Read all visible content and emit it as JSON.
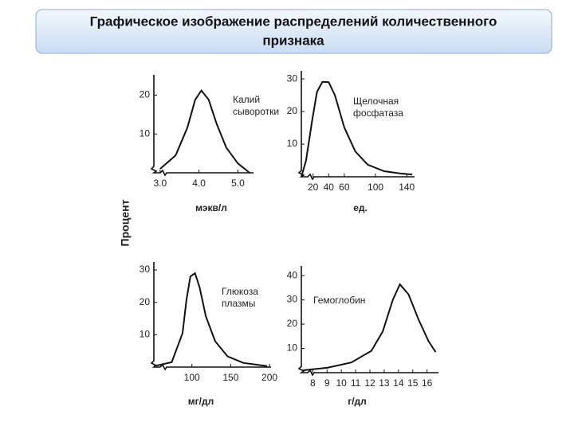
{
  "slide_title": [
    "Графическое изображение распределений количественного",
    "признака"
  ],
  "ylabel": "Процент",
  "chart_data": [
    {
      "type": "line",
      "annotation": [
        "Калий",
        "сыворотки"
      ],
      "xlabel": "мэкв/л",
      "x": [
        3.0,
        3.4,
        3.7,
        3.9,
        4.06,
        4.25,
        4.45,
        4.7,
        5.0,
        5.3
      ],
      "values": [
        1,
        4.5,
        11.6,
        18.8,
        21.2,
        18.8,
        12.7,
        6.5,
        2.4,
        0
      ],
      "xlim": [
        2.84,
        5.4
      ],
      "ylim": [
        0,
        24
      ],
      "xticks": [
        {
          "value": 3,
          "label": "3.0"
        },
        {
          "value": 4,
          "label": "4.0"
        },
        {
          "value": 5,
          "label": "5.0"
        }
      ],
      "yticks": [
        10,
        20
      ]
    },
    {
      "type": "line",
      "annotation": [
        "Щелочная",
        "фосфатаза"
      ],
      "xlabel": "ед.",
      "x": [
        5,
        11,
        19,
        25,
        32,
        40,
        48,
        60,
        74,
        90,
        111,
        132,
        147
      ],
      "values": [
        0,
        5,
        17.5,
        26,
        29.1,
        29,
        25,
        15.1,
        7.8,
        3.7,
        1.7,
        1,
        0.7
      ],
      "xlim": [
        5,
        150
      ],
      "ylim": [
        0,
        31
      ],
      "xticks": [
        20,
        40,
        60,
        100,
        140
      ],
      "yticks": [
        10,
        20,
        30
      ]
    },
    {
      "type": "line",
      "annotation": [
        "Глюкоза",
        "плазмы"
      ],
      "xlabel": "мг/дл",
      "x": [
        51,
        74,
        88,
        93,
        98,
        104,
        110,
        118,
        130,
        146,
        166,
        197
      ],
      "values": [
        0.3,
        1.5,
        10.5,
        20.8,
        28,
        29,
        24.6,
        15.7,
        8,
        3.3,
        1.3,
        0.3
      ],
      "xlim": [
        51,
        202
      ],
      "ylim": [
        0,
        31
      ],
      "xticks": [
        100,
        150,
        200
      ],
      "yticks": [
        10,
        20,
        30
      ]
    },
    {
      "type": "line",
      "annotation": [
        "Гемоглобин"
      ],
      "xlabel": "г/дл",
      "x": [
        7.3,
        9,
        10.7,
        12.1,
        12.9,
        13.6,
        14.1,
        14.7,
        15.4,
        16.1,
        16.6
      ],
      "values": [
        1,
        2,
        4.2,
        9,
        17,
        30,
        36.4,
        32.3,
        22,
        13,
        8.5
      ],
      "xlim": [
        7.2,
        16.8
      ],
      "ylim": [
        0,
        42
      ],
      "xticks": [
        8,
        9,
        10,
        11,
        12,
        13,
        14,
        15,
        16
      ],
      "yticks": [
        10,
        20,
        30,
        40
      ]
    }
  ]
}
